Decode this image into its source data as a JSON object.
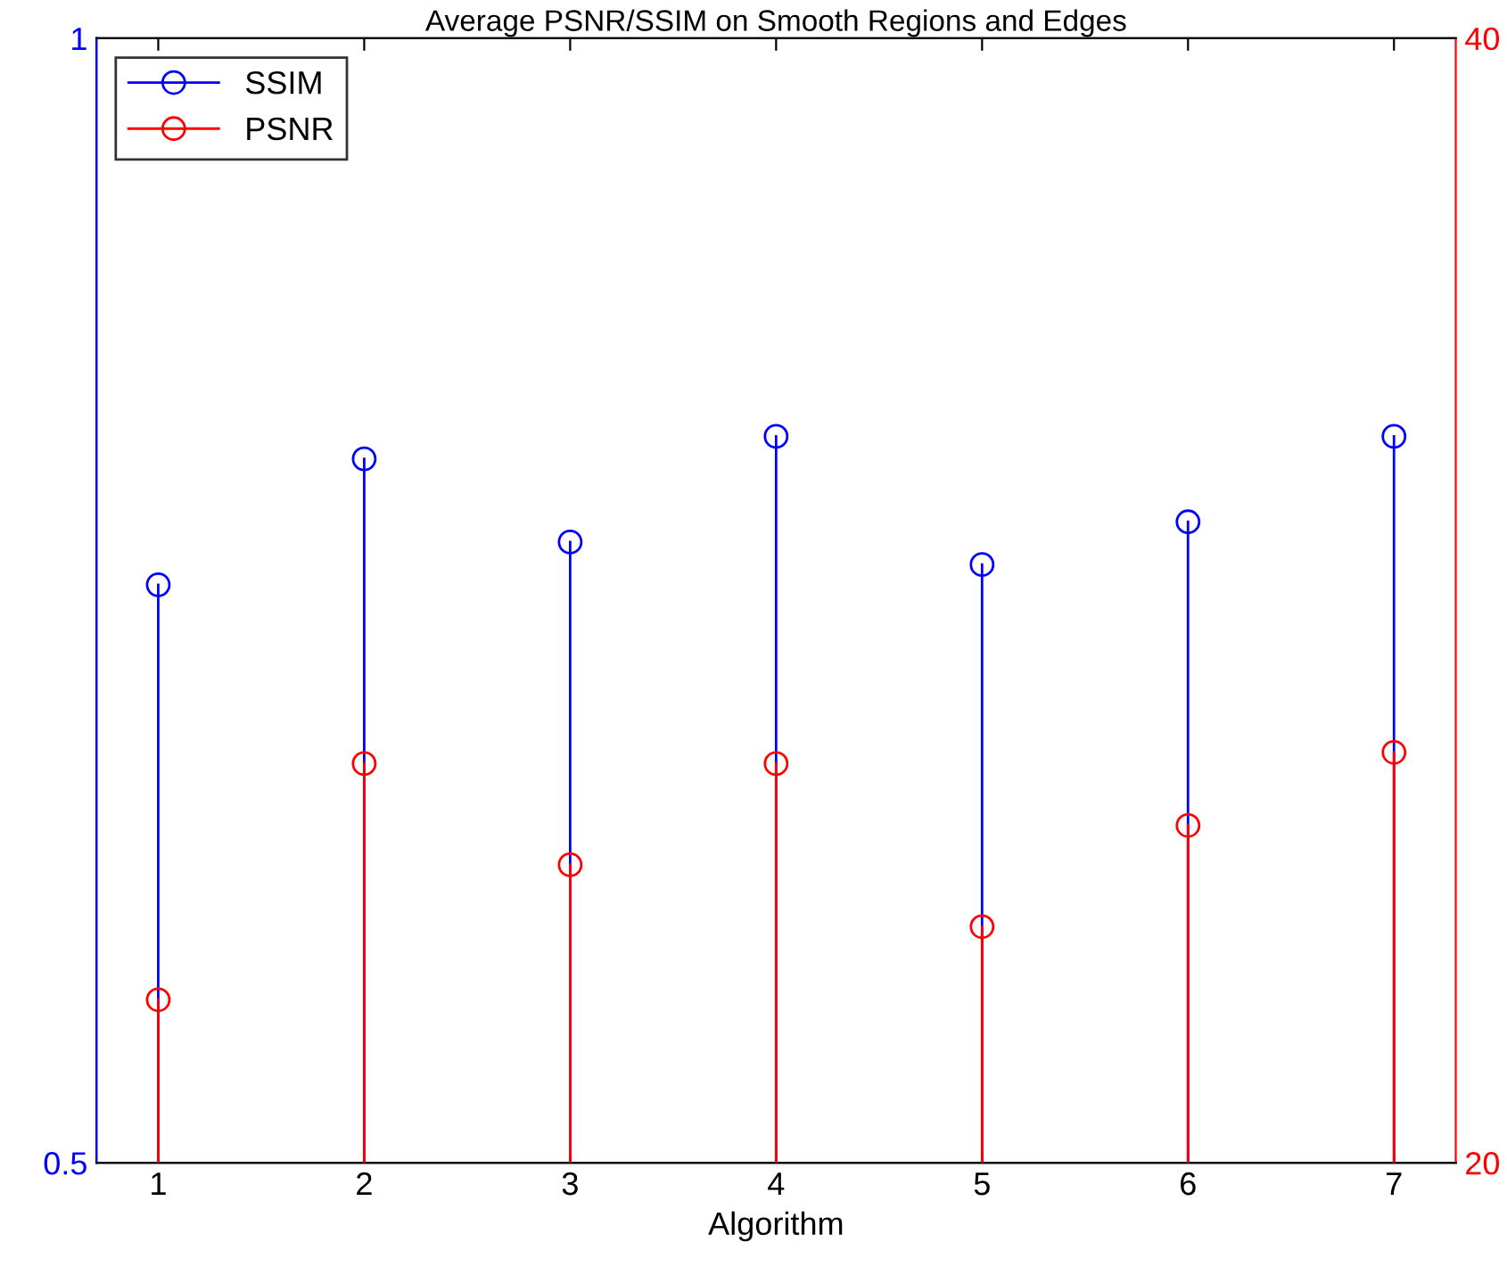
{
  "chart_data": {
    "type": "lollipop",
    "title": "Average PSNR/SSIM on Smooth Regions and Edges",
    "xlabel": "Algorithm",
    "x": [
      1,
      2,
      3,
      4,
      5,
      6,
      7
    ],
    "xlim": [
      0.7,
      7.3
    ],
    "xticks": [
      1,
      2,
      3,
      4,
      5,
      6,
      7
    ],
    "ylim": [
      0.5,
      1
    ],
    "yticks": [
      0.5,
      1
    ],
    "y2lim": [
      20,
      40
    ],
    "y2ticks": [
      20,
      40
    ],
    "series": [
      {
        "name": "SSIM",
        "color": "#0000ff",
        "values": [
          0.757,
          0.813,
          0.776,
          0.823,
          0.766,
          0.785,
          0.823
        ]
      },
      {
        "name": "PSNR",
        "color": "#ff0000",
        "axis": "y2",
        "values": [
          22.9,
          27.1,
          25.3,
          27.1,
          24.2,
          26.0,
          27.3
        ]
      }
    ],
    "marker": "circle",
    "legend": "top left",
    "grid": false
  }
}
